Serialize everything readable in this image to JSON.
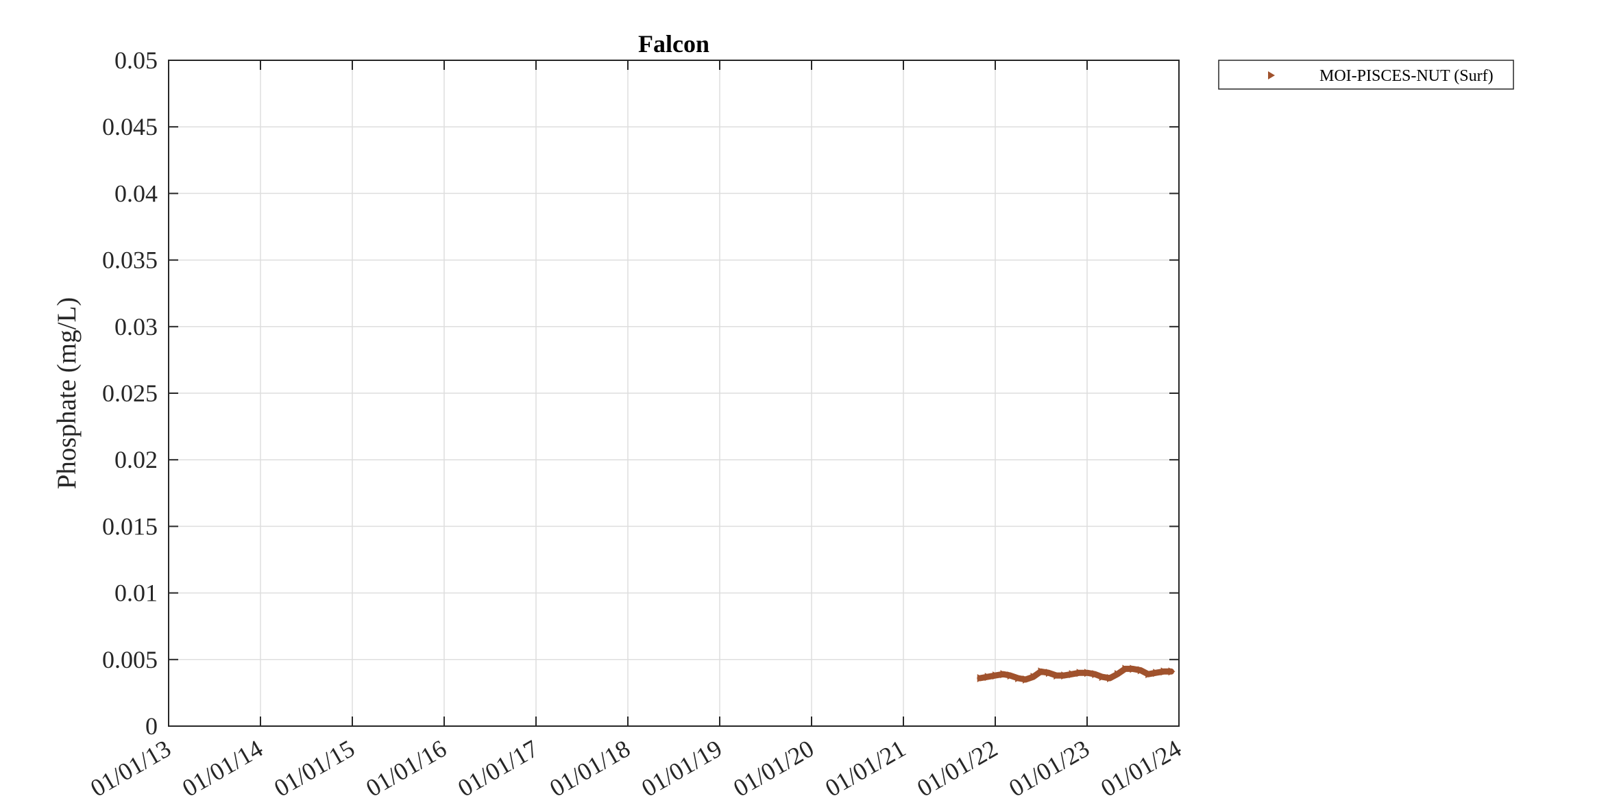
{
  "chart_data": {
    "type": "line",
    "title": "Falcon",
    "xlabel": "",
    "ylabel": "Phosphate (mg/L)",
    "x_tick_labels": [
      "01/01/13",
      "01/01/14",
      "01/01/15",
      "01/01/16",
      "01/01/17",
      "01/01/18",
      "01/01/19",
      "01/01/20",
      "01/01/21",
      "01/01/22",
      "01/01/23",
      "01/01/24"
    ],
    "y_tick_labels": [
      "0",
      "0.005",
      "0.01",
      "0.015",
      "0.02",
      "0.025",
      "0.03",
      "0.035",
      "0.04",
      "0.045",
      "0.05"
    ],
    "xlim": [
      "2013-01-01",
      "2024-01-01"
    ],
    "ylim": [
      0,
      0.05
    ],
    "grid": true,
    "legend_position": "outside-top-right",
    "series": [
      {
        "name": "MOI-PISCES-NUT (Surf)",
        "color": "#A0522D",
        "marker": "triangle-right",
        "x": [
          "2021-11-01",
          "2021-12-01",
          "2022-01-01",
          "2022-02-01",
          "2022-03-01",
          "2022-04-01",
          "2022-05-01",
          "2022-06-01",
          "2022-07-01",
          "2022-08-01",
          "2022-09-01",
          "2022-10-01",
          "2022-11-01",
          "2022-12-01",
          "2023-01-01",
          "2023-02-01",
          "2023-03-01",
          "2023-04-01",
          "2023-05-01",
          "2023-06-01",
          "2023-07-01",
          "2023-08-01",
          "2023-09-01",
          "2023-10-01",
          "2023-11-01",
          "2023-12-01"
        ],
        "values": [
          0.0036,
          0.0037,
          0.0038,
          0.0039,
          0.0038,
          0.0036,
          0.0035,
          0.0037,
          0.0041,
          0.004,
          0.0038,
          0.0038,
          0.0039,
          0.004,
          0.004,
          0.0039,
          0.0037,
          0.0036,
          0.0039,
          0.0043,
          0.0043,
          0.0042,
          0.0039,
          0.004,
          0.0041,
          0.0041
        ]
      }
    ]
  }
}
